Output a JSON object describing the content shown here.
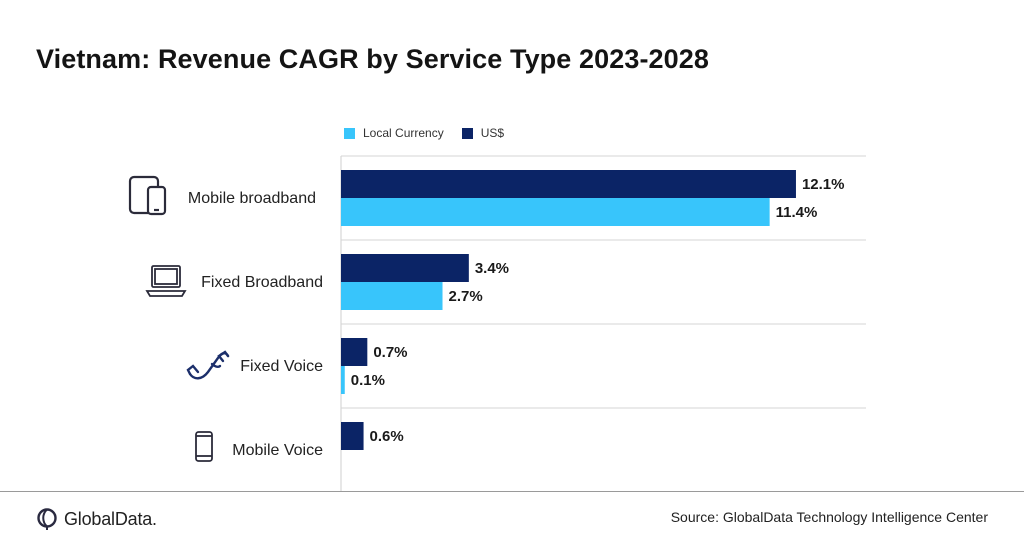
{
  "title": "Vietnam: Revenue CAGR by Service Type 2023-2028",
  "legend": [
    {
      "label": "Local Currency",
      "color": "#38c5fb"
    },
    {
      "label": "US$",
      "color": "#0b2466"
    }
  ],
  "chart_data": {
    "type": "bar",
    "orientation": "horizontal",
    "title": "Vietnam: Revenue CAGR by Service Type 2023-2028",
    "categories": [
      "Mobile broadband",
      "Fixed Broadband",
      "Fixed Voice",
      "Mobile Voice"
    ],
    "category_icons": [
      "tablet-phone-icon",
      "laptop-icon",
      "telephone-handset-icon",
      "mobile-phone-icon"
    ],
    "series": [
      {
        "name": "US$",
        "color": "#0b2466",
        "values": [
          12.1,
          3.4,
          0.7,
          0.6
        ],
        "labels": [
          "12.1%",
          "3.4%",
          "0.7%",
          "0.6%"
        ]
      },
      {
        "name": "Local Currency",
        "color": "#38c5fb",
        "values": [
          11.4,
          2.7,
          0.1,
          null
        ],
        "labels": [
          "11.4%",
          "2.7%",
          "0.1%",
          ""
        ]
      }
    ],
    "xlim": [
      0,
      14
    ],
    "grid": "horizontal separators",
    "legend_position": "top-left"
  },
  "footer": {
    "brand": "GlobalData.",
    "source": "Source: GlobalData Technology Intelligence Center"
  }
}
